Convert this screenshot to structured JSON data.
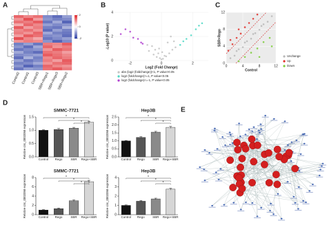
{
  "panel_labels": [
    "A",
    "B",
    "C",
    "D",
    "E"
  ],
  "chart_data": [
    {
      "type": "heatmap",
      "categories": [
        "Control2",
        "Control1",
        "Control3",
        "SBR+Rego1",
        "SBR+Rego3",
        "SBR+Rego2"
      ],
      "values": [
        [
          1.4,
          1.1,
          1.3,
          -1.2,
          -1.5,
          -1.0
        ],
        [
          1.0,
          1.6,
          0.9,
          -1.1,
          -1.3,
          -1.2
        ],
        [
          1.3,
          1.2,
          1.5,
          -1.4,
          -0.9,
          -1.6
        ],
        [
          0.8,
          1.4,
          1.1,
          -1.0,
          -1.2,
          -1.1
        ],
        [
          1.5,
          0.9,
          1.2,
          -1.3,
          -1.4,
          -0.8
        ],
        [
          1.1,
          1.3,
          1.0,
          -1.5,
          -1.0,
          -1.3
        ],
        [
          1.2,
          1.0,
          1.4,
          -0.9,
          -1.3,
          -1.4
        ],
        [
          0.9,
          1.5,
          1.3,
          -1.2,
          -1.1,
          -1.5
        ],
        [
          1.6,
          1.1,
          0.8,
          -1.4,
          -1.2,
          -1.0
        ],
        [
          1.0,
          1.2,
          1.1,
          -1.1,
          -1.6,
          -1.2
        ],
        [
          -1.3,
          -1.0,
          -1.4,
          1.2,
          1.1,
          1.5
        ],
        [
          -1.1,
          -1.5,
          -0.9,
          1.4,
          1.0,
          1.2
        ],
        [
          -1.4,
          -1.2,
          -1.1,
          1.0,
          1.5,
          1.3
        ],
        [
          -0.9,
          -1.3,
          -1.5,
          1.3,
          1.2,
          0.9
        ],
        [
          -1.2,
          -1.1,
          -1.0,
          1.5,
          1.3,
          1.1
        ],
        [
          -1.5,
          -0.8,
          -1.3,
          1.1,
          1.4,
          1.2
        ],
        [
          -1.0,
          -1.4,
          -1.2,
          1.2,
          0.9,
          1.5
        ],
        [
          -1.3,
          -1.2,
          -0.9,
          1.0,
          1.3,
          1.4
        ],
        [
          -1.1,
          -1.6,
          -1.3,
          1.4,
          1.1,
          1.0
        ],
        [
          -1.4,
          -1.0,
          -1.1,
          1.3,
          1.5,
          1.2
        ]
      ],
      "zlim": [
        -2,
        2
      ],
      "zticks": [
        2,
        0,
        -2
      ],
      "colors": [
        "#2b3ea6",
        "#ffffff",
        "#e0262b"
      ]
    },
    {
      "type": "scatter",
      "xlabel": "Log2 (Fold Change)",
      "ylabel": "-Log10 (P value)",
      "xlim": [
        -3,
        3
      ],
      "xticks": [
        -2,
        0,
        2
      ],
      "ylim": [
        0,
        4
      ],
      "yticks": [
        0,
        2,
        4
      ],
      "legend": "bottom",
      "background": "#ffffff",
      "series": [
        {
          "name": "abs (log2 (foldchange))<1, P value>0.05",
          "color": "#c4c4c4",
          "x": [
            -0.8,
            -0.5,
            -0.3,
            -0.1,
            0,
            0.1,
            0.3,
            0.5,
            0.7,
            0.9,
            -0.6,
            0.2,
            -0.2,
            0.4,
            0.6,
            -0.4,
            0.8,
            -0.9,
            0.05,
            -0.15
          ],
          "values": [
            0.8,
            0.5,
            0.3,
            0.2,
            0.1,
            0.15,
            0.35,
            0.6,
            0.9,
            1.1,
            1.2,
            0.4,
            0.6,
            1.5,
            2.0,
            0.9,
            1.6,
            1.3,
            0.7,
            1.0
          ]
        },
        {
          "name": "log2 (foldchange)>=1, P value<0.05",
          "color": "#4fd8c4",
          "x": [
            1.2,
            1.4,
            1.6,
            1.9,
            2.2,
            2.4,
            2.6
          ],
          "values": [
            1.3,
            1.6,
            1.8,
            2.1,
            2.6,
            2.9,
            3.1
          ]
        },
        {
          "name": "log2 (foldchange)<=-1, P value<0.05",
          "color": "#b040d0",
          "x": [
            -2.6,
            -2.3,
            -2.0,
            -1.8,
            -1.5,
            -1.3,
            -1.2
          ],
          "values": [
            2.2,
            2.6,
            2.4,
            1.9,
            1.8,
            1.5,
            1.4
          ]
        }
      ]
    },
    {
      "type": "scatter",
      "xlabel": "Control",
      "ylabel": "SBR+Rego",
      "xlim": [
        0,
        12
      ],
      "xticks": [
        0,
        4,
        8,
        12
      ],
      "ylim": [
        0,
        12
      ],
      "yticks": [
        0,
        4,
        8,
        12
      ],
      "legend": "right",
      "background": "#ebebeb",
      "series": [
        {
          "name": "Unchange",
          "color": "#b8b8b8",
          "x": [
            1,
            2,
            2.5,
            3,
            4,
            4.5,
            5,
            6,
            6.5,
            7,
            8,
            8.5,
            9,
            10,
            11
          ],
          "values": [
            1.2,
            1.8,
            2.9,
            3.3,
            3.8,
            4.9,
            5.2,
            5.8,
            6.9,
            7.1,
            7.9,
            8.8,
            9.2,
            9.8,
            11.1
          ]
        },
        {
          "name": "Up",
          "color": "#e0302a",
          "x": [
            0.5,
            1.5,
            2.5,
            3.5,
            4.5,
            5.5,
            6.5,
            7.5,
            1,
            3
          ],
          "values": [
            3,
            4.5,
            6,
            7,
            8.5,
            9.5,
            10.5,
            11.5,
            5.5,
            8
          ]
        },
        {
          "name": "Down",
          "color": "#7ccd3a",
          "x": [
            3,
            4.5,
            6,
            7.5,
            9,
            10.5,
            8,
            11
          ],
          "values": [
            0.5,
            1.5,
            2.5,
            3.5,
            5,
            6,
            1.5,
            4
          ]
        }
      ]
    },
    {
      "type": "bar",
      "title": "SMMC-7721",
      "ylabel": "Relative circ_0002058 expression",
      "categories": [
        "Control",
        "Rego",
        "SBR",
        "Rego+SBR"
      ],
      "values": [
        1.0,
        1.03,
        1.08,
        1.3
      ],
      "errors": [
        0.02,
        0.04,
        0.03,
        0.04
      ],
      "colors": [
        "#111111",
        "#555555",
        "#8a8a8a",
        "#d6d6d6"
      ],
      "ylim": [
        0,
        1.5
      ],
      "yticks": [
        {
          "value": 0,
          "label": "0.0"
        },
        0.5,
        {
          "value": 1,
          "label": "1.0"
        },
        1.5
      ],
      "annotations": [
        "*",
        "*",
        "*"
      ]
    },
    {
      "type": "bar",
      "title": "Hep3B",
      "ylabel": "Relative circ_0002058 expression",
      "categories": [
        "Control",
        "Rego",
        "SBR",
        "Rego+SBR"
      ],
      "values": [
        1.0,
        1.22,
        1.55,
        1.85
      ],
      "errors": [
        0.03,
        0.05,
        0.05,
        0.06
      ],
      "colors": [
        "#111111",
        "#555555",
        "#8a8a8a",
        "#d6d6d6"
      ],
      "ylim": [
        0,
        2.5
      ],
      "yticks": [
        {
          "value": 0,
          "label": "0.0"
        },
        0.5,
        {
          "value": 1,
          "label": "1.0"
        },
        1.5,
        {
          "value": 2,
          "label": "2.0"
        },
        2.5
      ],
      "annotations": [
        "*",
        "*",
        "*"
      ]
    },
    {
      "type": "bar",
      "title": "SMMC-7721",
      "ylabel": "Relative circ_0002058 expression",
      "categories": [
        "Control",
        "Rego",
        "SBR",
        "Rego+SBR"
      ],
      "values": [
        1.0,
        1.3,
        3.0,
        7.1
      ],
      "errors": [
        0.1,
        0.15,
        0.2,
        0.3
      ],
      "colors": [
        "#111111",
        "#555555",
        "#8a8a8a",
        "#d6d6d6"
      ],
      "ylim": [
        0,
        8
      ],
      "yticks": [
        0,
        2,
        4,
        6,
        8
      ],
      "annotations": [
        "*",
        "*",
        "*"
      ]
    },
    {
      "type": "bar",
      "title": "Hep3B",
      "ylabel": "Relative circ_0002058 expression",
      "categories": [
        "Control",
        "Rego",
        "SBR",
        "Rego+SBR"
      ],
      "values": [
        1.0,
        1.45,
        1.7,
        2.75
      ],
      "errors": [
        0.05,
        0.08,
        0.08,
        0.1
      ],
      "colors": [
        "#111111",
        "#555555",
        "#8a8a8a",
        "#d6d6d6"
      ],
      "ylim": [
        0,
        4
      ],
      "yticks": [
        0,
        1,
        2,
        3,
        4
      ],
      "annotations": [
        "*",
        "*",
        "*"
      ]
    }
  ]
}
